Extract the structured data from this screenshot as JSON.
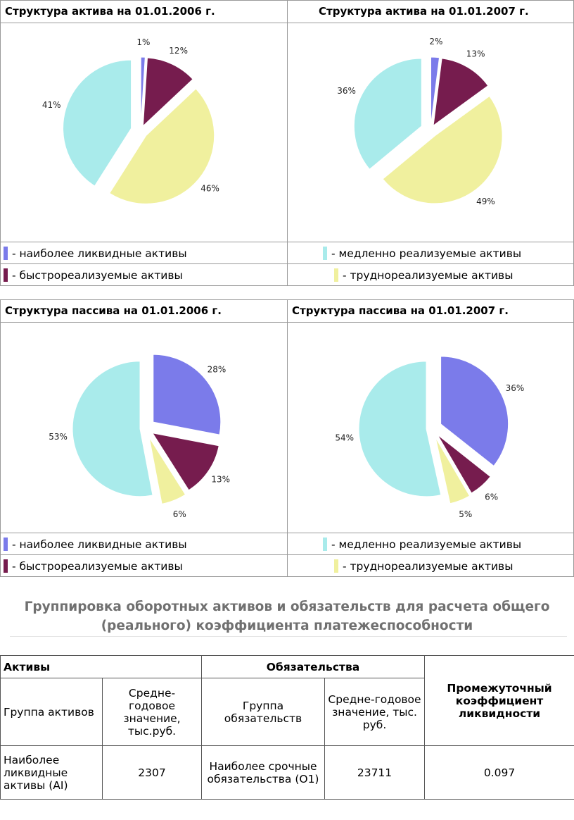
{
  "colors": {
    "most_liquid": "#7b7bea",
    "quick": "#761c4e",
    "slow": "#a9ebeb",
    "hard": "#f0f09e"
  },
  "asset_section": {
    "title_2006": "Структура актива на 01.01.2006 г.",
    "title_2007": "Структура актива на 01.01.2007 г."
  },
  "liability_section": {
    "title_2006": "Структура пассива на 01.01.2006 г.",
    "title_2007": "Структура пассива на 01.01.2007 г."
  },
  "legend": {
    "most_liquid": "- наиболее ликвидные активы",
    "quick": "- быстрореализуемые активы",
    "slow": "- медленно реализуемые активы",
    "hard": "- труднореализуемые активы"
  },
  "chart_data": [
    {
      "type": "pie",
      "title": "Структура актива на 01.01.2006 г.",
      "categories": [
        "наиболее ликвидные активы",
        "быстрореализуемые активы",
        "труднореализуемые активы",
        "медленно реализуемые активы"
      ],
      "values": [
        1,
        12,
        46,
        41
      ],
      "labels": [
        "1%",
        "12%",
        "46%",
        "41%"
      ],
      "exploded": true
    },
    {
      "type": "pie",
      "title": "Структура актива на 01.01.2007 г.",
      "categories": [
        "наиболее ликвидные активы",
        "быстрореализуемые активы",
        "труднореализуемые активы",
        "медленно реализуемые активы"
      ],
      "values": [
        2,
        13,
        49,
        36
      ],
      "labels": [
        "2%",
        "13%",
        "49%",
        "36%"
      ],
      "exploded": true
    },
    {
      "type": "pie",
      "title": "Структура пассива на 01.01.2006 г.",
      "categories": [
        "наиболее ликвидные активы",
        "быстрореализуемые активы",
        "труднореализуемые активы",
        "медленно реализуемые активы"
      ],
      "values": [
        28,
        13,
        6,
        53
      ],
      "labels": [
        "28%",
        "13%",
        "6%",
        "53%"
      ],
      "exploded": true
    },
    {
      "type": "pie",
      "title": "Структура пассива на 01.01.2007 г.",
      "categories": [
        "наиболее ликвидные активы",
        "быстрореализуемые активы",
        "труднореализуемые активы",
        "медленно реализуемые активы"
      ],
      "values": [
        36,
        6,
        5,
        54
      ],
      "labels": [
        "36%",
        "6%",
        "5%",
        "54%"
      ],
      "exploded": true
    }
  ],
  "grouping": {
    "title": "Группировка оборотных активов и обязательств для расчета общего (реального) коэффициента платежеспособности",
    "assets_header": "Активы",
    "liabilities_header": "Обязательства",
    "ratio_header": "Промежуточный коэффициент ликвидности",
    "col_asset_group": "Группа активов",
    "col_asset_avg": "Средне-годовое значение, тыс.руб.",
    "col_liab_group": "Группа обязательств",
    "col_liab_avg": "Средне-годовое значение, тыс. руб.",
    "rows": [
      {
        "asset_group": "Наиболее ликвидные активы (AI)",
        "asset_value": "2307",
        "liab_group": "Наиболее срочные обязательства (О1)",
        "liab_value": "23711",
        "ratio": "0.097"
      }
    ]
  }
}
